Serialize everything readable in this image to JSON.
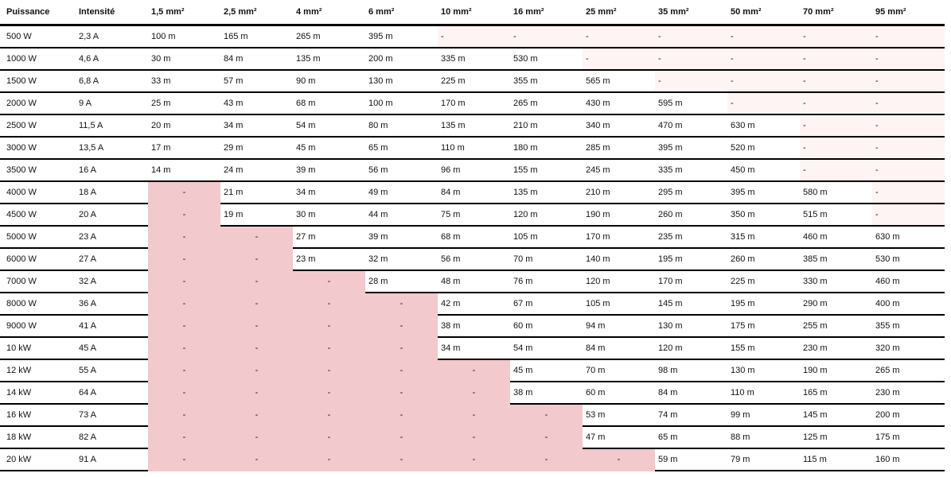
{
  "colors": {
    "unavailable_low": "#f2c9cc",
    "unavailable_high": "#fdf4f3"
  },
  "headers": [
    "Puissance",
    "Intensité",
    "1,5 mm²",
    "2,5 mm²",
    "4 mm²",
    "6 mm²",
    "10 mm²",
    "16 mm²",
    "25 mm²",
    "35 mm²",
    "50 mm²",
    "70 mm²",
    "95 mm²"
  ],
  "rows": [
    [
      "500 W",
      "2,3 A",
      "100 m",
      "165 m",
      "265 m",
      "395 m",
      "-",
      "-",
      "-",
      "-",
      "-",
      "-",
      "-"
    ],
    [
      "1000 W",
      "4,6 A",
      "30 m",
      "84 m",
      "135 m",
      "200 m",
      "335 m",
      "530 m",
      "-",
      "-",
      "-",
      "-",
      "-"
    ],
    [
      "1500 W",
      "6,8 A",
      "33 m",
      "57 m",
      "90 m",
      "130 m",
      "225 m",
      "355 m",
      "565 m",
      "-",
      "-",
      "-",
      "-"
    ],
    [
      "2000 W",
      "9 A",
      "25 m",
      "43 m",
      "68 m",
      "100 m",
      "170 m",
      "265 m",
      "430 m",
      "595 m",
      "-",
      "-",
      "-"
    ],
    [
      "2500 W",
      "11,5 A",
      "20 m",
      "34 m",
      "54 m",
      "80 m",
      "135 m",
      "210 m",
      "340 m",
      "470 m",
      "630 m",
      "-",
      "-"
    ],
    [
      "3000 W",
      "13,5 A",
      "17 m",
      "29 m",
      "45 m",
      "65 m",
      "110 m",
      "180 m",
      "285 m",
      "395 m",
      "520 m",
      "-",
      "-"
    ],
    [
      "3500 W",
      "16 A",
      "14 m",
      "24 m",
      "39 m",
      "56 m",
      "96 m",
      "155 m",
      "245 m",
      "335 m",
      "450 m",
      "-",
      "-"
    ],
    [
      "4000 W",
      "18 A",
      "-",
      "21 m",
      "34 m",
      "49 m",
      "84 m",
      "135 m",
      "210 m",
      "295 m",
      "395 m",
      "580 m",
      "-"
    ],
    [
      "4500 W",
      "20 A",
      "-",
      "19 m",
      "30 m",
      "44 m",
      "75 m",
      "120 m",
      "190 m",
      "260 m",
      "350 m",
      "515 m",
      "-"
    ],
    [
      "5000 W",
      "23 A",
      "-",
      "-",
      "27 m",
      "39 m",
      "68 m",
      "105 m",
      "170 m",
      "235 m",
      "315 m",
      "460 m",
      "630 m"
    ],
    [
      "6000 W",
      "27 A",
      "-",
      "-",
      "23 m",
      "32 m",
      "56 m",
      "70 m",
      "140 m",
      "195 m",
      "260 m",
      "385 m",
      "530 m"
    ],
    [
      "7000 W",
      "32 A",
      "-",
      "-",
      "-",
      "28 m",
      "48 m",
      "76 m",
      "120 m",
      "170 m",
      "225 m",
      "330 m",
      "460 m"
    ],
    [
      "8000 W",
      "36 A",
      "-",
      "-",
      "-",
      "-",
      "42 m",
      "67 m",
      "105 m",
      "145 m",
      "195 m",
      "290 m",
      "400 m"
    ],
    [
      "9000 W",
      "41 A",
      "-",
      "-",
      "-",
      "-",
      "38 m",
      "60 m",
      "94 m",
      "130 m",
      "175 m",
      "255 m",
      "355 m"
    ],
    [
      "10 kW",
      "45 A",
      "-",
      "-",
      "-",
      "-",
      "34 m",
      "54 m",
      "84 m",
      "120 m",
      "155 m",
      "230 m",
      "320 m"
    ],
    [
      "12 kW",
      "55 A",
      "-",
      "-",
      "-",
      "-",
      "-",
      "45 m",
      "70 m",
      "98 m",
      "130 m",
      "190 m",
      "265 m"
    ],
    [
      "14 kW",
      "64 A",
      "-",
      "-",
      "-",
      "-",
      "-",
      "38 m",
      "60 m",
      "84 m",
      "110 m",
      "165 m",
      "230 m"
    ],
    [
      "16 kW",
      "73 A",
      "-",
      "-",
      "-",
      "-",
      "-",
      "-",
      "53 m",
      "74 m",
      "99 m",
      "145 m",
      "200 m"
    ],
    [
      "18 kW",
      "82 A",
      "-",
      "-",
      "-",
      "-",
      "-",
      "-",
      "47 m",
      "65 m",
      "88 m",
      "125 m",
      "175 m"
    ],
    [
      "20 kW",
      "91 A",
      "-",
      "-",
      "-",
      "-",
      "-",
      "-",
      "-",
      "59 m",
      "79 m",
      "115 m",
      "160 m"
    ]
  ]
}
